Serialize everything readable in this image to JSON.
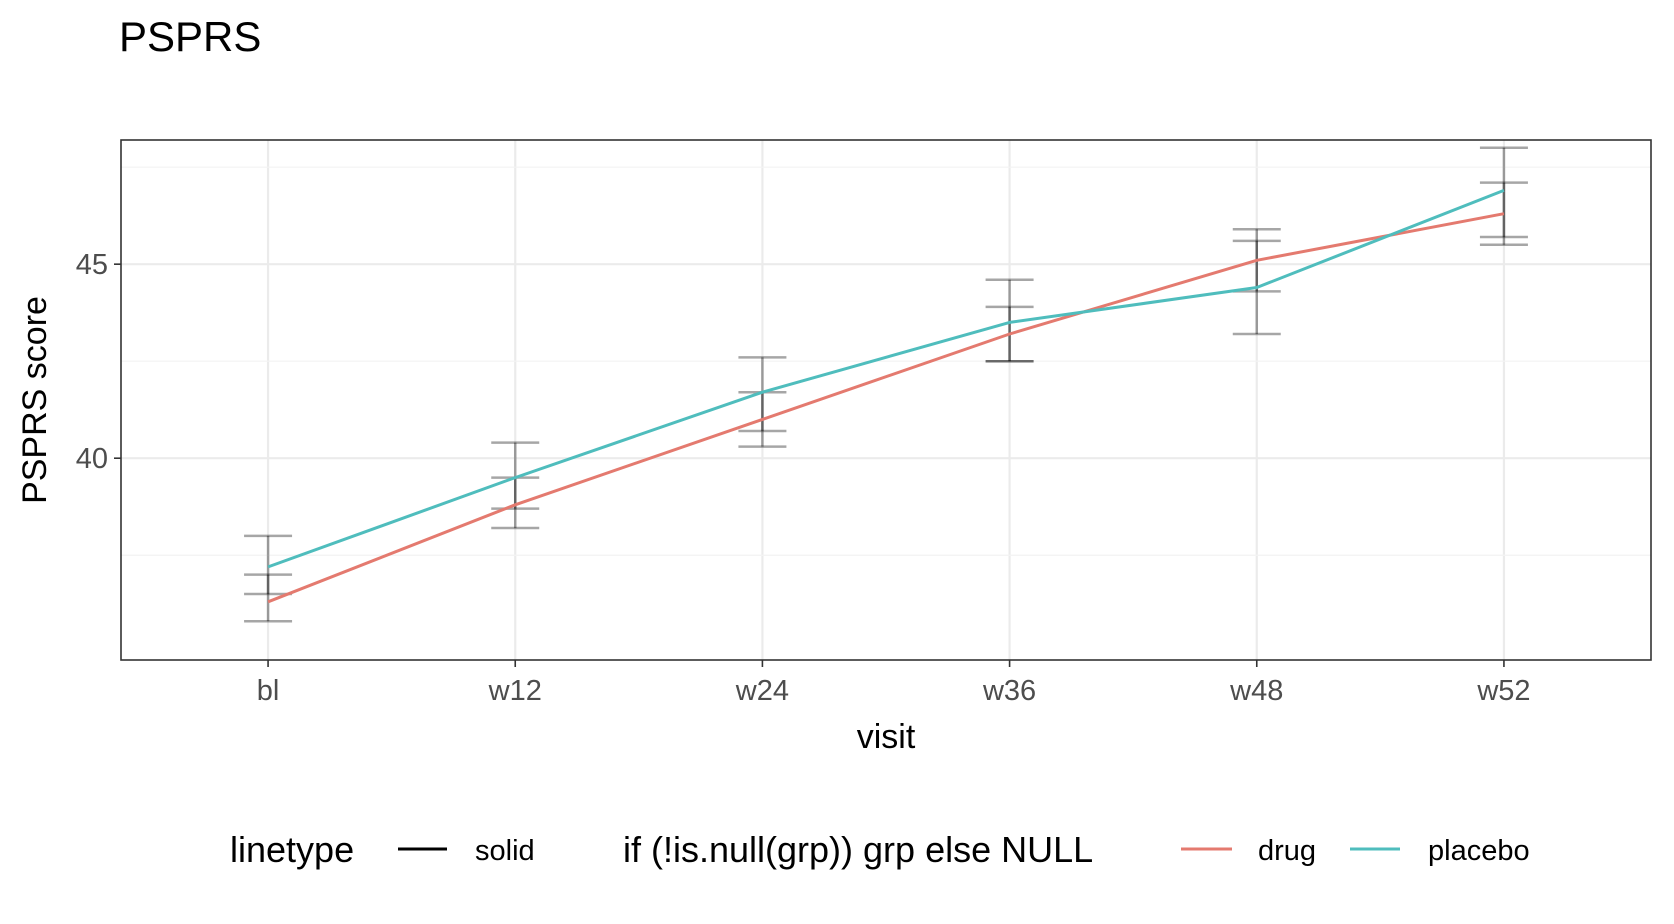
{
  "chart_data": {
    "type": "line",
    "title": "PSPRS",
    "xlabel": "visit",
    "ylabel": "PSPRS score",
    "categories": [
      "bl",
      "w12",
      "w24",
      "w36",
      "w48",
      "w52"
    ],
    "ylim": [
      34.8,
      48.2
    ],
    "yticks": [
      40,
      45
    ],
    "grid": true,
    "series": [
      {
        "name": "drug",
        "color": "#E47A6F",
        "values": [
          36.3,
          38.8,
          41.0,
          43.2,
          45.1,
          46.3
        ],
        "ci_low": [
          35.8,
          38.2,
          40.3,
          42.5,
          44.3,
          45.5
        ],
        "ci_high": [
          37.0,
          39.5,
          41.7,
          43.9,
          45.6,
          47.1
        ]
      },
      {
        "name": "placebo",
        "color": "#4FBDBD",
        "values": [
          37.2,
          39.5,
          41.7,
          43.5,
          44.4,
          46.9
        ],
        "ci_low": [
          36.5,
          38.7,
          40.7,
          42.5,
          43.2,
          45.7
        ],
        "ci_high": [
          38.0,
          40.4,
          42.6,
          44.6,
          45.9,
          48.0
        ]
      }
    ],
    "legend": {
      "position": "bottom",
      "linetype_title": "linetype",
      "linetype_label": "solid",
      "group_title": "if (!is.null(grp)) grp else NULL"
    }
  }
}
